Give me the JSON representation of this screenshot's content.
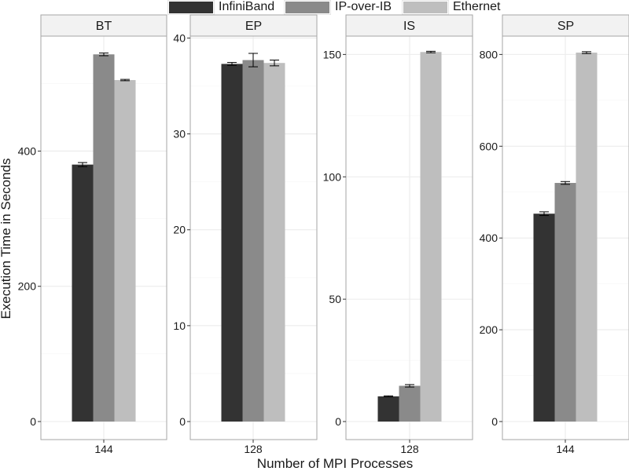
{
  "chart_data": [
    {
      "type": "bar",
      "facet": "BT",
      "categories": [
        "144"
      ],
      "ylim": [
        0,
        570
      ],
      "yticks": [
        0,
        200,
        400
      ],
      "series": [
        {
          "name": "InfiniBand",
          "values": [
            380
          ],
          "error": [
            3
          ]
        },
        {
          "name": "IP-over-IB",
          "values": [
            543
          ],
          "error": [
            2
          ]
        },
        {
          "name": "Ethernet",
          "values": [
            505
          ],
          "error": [
            1
          ]
        }
      ]
    },
    {
      "type": "bar",
      "facet": "EP",
      "categories": [
        "128"
      ],
      "ylim": [
        0,
        40.2
      ],
      "yticks": [
        0,
        10,
        20,
        30,
        40
      ],
      "series": [
        {
          "name": "InfiniBand",
          "values": [
            37.3
          ],
          "error": [
            0.15
          ]
        },
        {
          "name": "IP-over-IB",
          "values": [
            37.7
          ],
          "error": [
            0.7
          ]
        },
        {
          "name": "Ethernet",
          "values": [
            37.4
          ],
          "error": [
            0.3
          ]
        }
      ]
    },
    {
      "type": "bar",
      "facet": "IS",
      "categories": [
        "128"
      ],
      "ylim": [
        0,
        157.5
      ],
      "yticks": [
        0,
        50,
        100,
        150
      ],
      "series": [
        {
          "name": "InfiniBand",
          "values": [
            10.3
          ],
          "error": [
            0.2
          ]
        },
        {
          "name": "IP-over-IB",
          "values": [
            14.6
          ],
          "error": [
            0.5
          ]
        },
        {
          "name": "Ethernet",
          "values": [
            151.0
          ],
          "error": [
            0.3
          ]
        }
      ]
    },
    {
      "type": "bar",
      "facet": "SP",
      "categories": [
        "144"
      ],
      "ylim": [
        0,
        840
      ],
      "yticks": [
        0,
        200,
        400,
        600,
        800
      ],
      "series": [
        {
          "name": "InfiniBand",
          "values": [
            453
          ],
          "error": [
            4
          ]
        },
        {
          "name": "IP-over-IB",
          "values": [
            520
          ],
          "error": [
            3
          ]
        },
        {
          "name": "Ethernet",
          "values": [
            804
          ],
          "error": [
            2
          ]
        }
      ]
    }
  ],
  "axes": {
    "xlabel": "Number of MPI Processes",
    "ylabel": "Execution Time in Seconds"
  },
  "legend": {
    "position": "top",
    "items": [
      {
        "label": "InfiniBand",
        "color": "#333333"
      },
      {
        "label": "IP-over-IB",
        "color": "#8a8a8a"
      },
      {
        "label": "Ethernet",
        "color": "#bebebe"
      }
    ]
  },
  "style": {
    "strip_fill": "#f2f2f2",
    "panel_border": "#a6a6a6",
    "grid_major": "#ebebeb",
    "grid_minor": "#f5f5f5",
    "text_color": "#1a1a1a"
  }
}
